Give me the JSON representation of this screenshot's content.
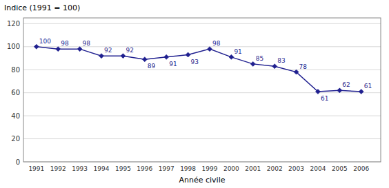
{
  "chart_data": {
    "type": "line",
    "ylabel": "Indice (1991 = 100)",
    "xlabel": "Année civile",
    "x": [
      1991,
      1992,
      1993,
      1994,
      1995,
      1996,
      1997,
      1998,
      1999,
      2000,
      2001,
      2002,
      2003,
      2004,
      2005,
      2006
    ],
    "values": [
      100,
      98,
      98,
      92,
      92,
      89,
      91,
      93,
      98,
      91,
      85,
      83,
      78,
      61,
      62,
      61
    ],
    "color": "#1F1F8F",
    "marker": "diamond",
    "xlim": [
      1990.4,
      2006.9
    ],
    "xticks": [
      1991,
      1992,
      1993,
      1994,
      1995,
      1996,
      1997,
      1998,
      1999,
      2000,
      2001,
      2002,
      2003,
      2004,
      2005,
      2006
    ],
    "ylim": [
      0,
      125
    ],
    "yticks": [
      0,
      20,
      40,
      60,
      80,
      100,
      120
    ],
    "grid": true,
    "data_labels": true
  }
}
